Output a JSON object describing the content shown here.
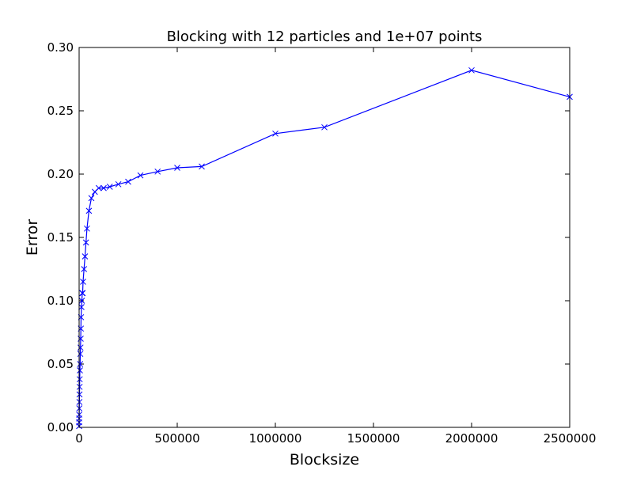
{
  "chart_data": {
    "type": "line",
    "title": "Blocking with 12 particles and 1e+07 points",
    "xlabel": "Blocksize",
    "ylabel": "Error",
    "xlim": [
      0,
      2500000
    ],
    "ylim": [
      0.0,
      0.3
    ],
    "x_ticks": [
      0,
      500000,
      1000000,
      1500000,
      2000000,
      2500000
    ],
    "x_tick_labels": [
      "0",
      "500000",
      "1000000",
      "1500000",
      "2000000",
      "2500000"
    ],
    "y_ticks": [
      0.0,
      0.05,
      0.1,
      0.15,
      0.2,
      0.25,
      0.3
    ],
    "y_tick_labels": [
      "0.00",
      "0.05",
      "0.10",
      "0.15",
      "0.20",
      "0.25",
      "0.30"
    ],
    "grid": false,
    "line_color": "#0000ff",
    "marker": "x",
    "series": [
      {
        "x": [
          10,
          100,
          250,
          500,
          1000,
          1500,
          2000,
          2500,
          3000,
          4000,
          5000,
          6000,
          7000,
          8000,
          9000,
          10000,
          12000,
          14000,
          16000,
          18000,
          20000,
          25000,
          30000,
          35000,
          40000,
          50000,
          62500,
          80000,
          100000,
          125000,
          156250,
          200000,
          250000,
          312500,
          400000,
          500000,
          625000,
          1000000,
          1250000,
          2000000,
          2500000
        ],
        "y": [
          0.001,
          0.004,
          0.007,
          0.01,
          0.015,
          0.02,
          0.026,
          0.032,
          0.038,
          0.045,
          0.05,
          0.058,
          0.063,
          0.07,
          0.078,
          0.087,
          0.095,
          0.1,
          0.106,
          0.106,
          0.115,
          0.125,
          0.135,
          0.146,
          0.157,
          0.171,
          0.181,
          0.186,
          0.189,
          0.189,
          0.19,
          0.192,
          0.194,
          0.199,
          0.202,
          0.205,
          0.206,
          0.232,
          0.237,
          0.282,
          0.261
        ]
      }
    ]
  }
}
